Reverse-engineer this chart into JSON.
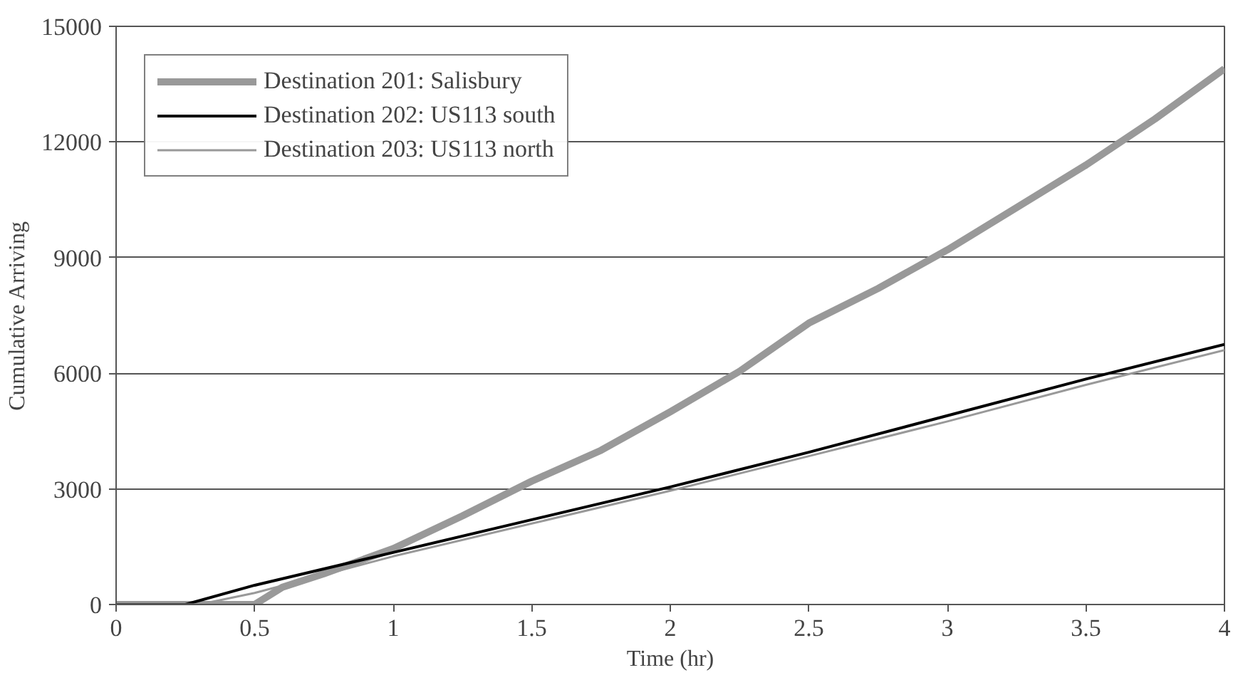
{
  "chart_data": {
    "type": "line",
    "xlabel": "Time (hr)",
    "ylabel": "Cumulative Arriving",
    "xlim": [
      0,
      4
    ],
    "xticks": [
      0,
      {
        "value": 0.5,
        "label": "0.5"
      },
      1,
      {
        "value": 1.5,
        "label": "1.5"
      },
      2,
      {
        "value": 2.5,
        "label": "2.5"
      },
      3,
      {
        "value": 3.5,
        "label": "3.5"
      },
      4
    ],
    "ylim": [
      0,
      15000
    ],
    "yticks": [
      0,
      3000,
      6000,
      9000,
      12000,
      15000
    ],
    "grid": "y",
    "legend": "top left",
    "marker": "none",
    "line_style": "solid",
    "series": [
      {
        "name": "Destination 201: Salisbury",
        "color": "#999999",
        "x": [
          0,
          0.25,
          0.5,
          0.6,
          0.75,
          1,
          1.25,
          1.5,
          1.75,
          2,
          2.25,
          2.5,
          2.75,
          3,
          3.25,
          3.5,
          3.75,
          4
        ],
        "values": [
          0,
          0,
          0,
          450,
          800,
          1450,
          2300,
          3200,
          4000,
          5000,
          6050,
          7300,
          8200,
          9200,
          10300,
          11400,
          12600,
          13900
        ]
      },
      {
        "name": "Destination 202: US113 south",
        "color": "#000000",
        "x": [
          0,
          0.25,
          0.5,
          1,
          1.5,
          2,
          2.5,
          3,
          3.5,
          4
        ],
        "values": [
          0,
          0,
          500,
          1350,
          2200,
          3050,
          3950,
          4900,
          5850,
          6750
        ]
      },
      {
        "name": "Destination 203: US113 north",
        "color": "#999999",
        "x": [
          0,
          0.3,
          0.5,
          1,
          1.5,
          2,
          2.5,
          3,
          3.5,
          4
        ],
        "values": [
          0,
          0,
          300,
          1250,
          2100,
          2950,
          3850,
          4750,
          5700,
          6600
        ]
      }
    ]
  }
}
